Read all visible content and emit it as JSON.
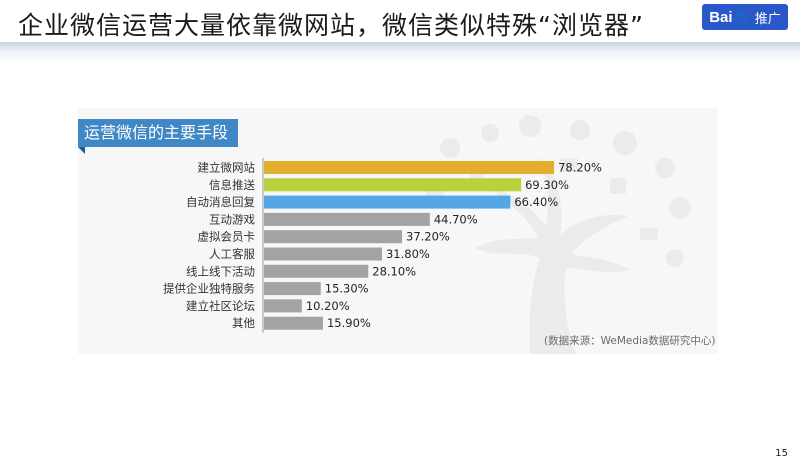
{
  "slide": {
    "title": "企业微信运营大量依靠微网站，微信类似特殊“浏览器”",
    "page_number": "15",
    "logo": {
      "brand": "Bai",
      "glyph": "du",
      "suffix": "推广"
    }
  },
  "panel": {
    "tab_title": "运营微信的主要手段"
  },
  "source": "(数据来源：WeMedia数据研究中心)",
  "colors": {
    "gold": "#e3ae2e",
    "lime": "#b7d23a",
    "blue": "#55a6e6",
    "gray": "#a3a3a3"
  },
  "chart_data": {
    "type": "bar",
    "orientation": "horizontal",
    "title": "运营微信的主要手段",
    "categories": [
      "建立微网站",
      "信息推送",
      "自动消息回复",
      "互动游戏",
      "虚拟会员卡",
      "人工客服",
      "线上线下活动",
      "提供企业独特服务",
      "建立社区论坛",
      "其他"
    ],
    "values": [
      78.2,
      69.3,
      66.4,
      44.7,
      37.2,
      31.8,
      28.1,
      15.3,
      10.2,
      15.9
    ],
    "value_labels": [
      "78.20%",
      "69.30%",
      "66.40%",
      "44.70%",
      "37.20%",
      "31.80%",
      "28.10%",
      "15.30%",
      "10.20%",
      "15.90%"
    ],
    "bar_colors": [
      "#e3ae2e",
      "#b7d23a",
      "#55a6e6",
      "#a3a3a3",
      "#a3a3a3",
      "#a3a3a3",
      "#a3a3a3",
      "#a3a3a3",
      "#a3a3a3",
      "#a3a3a3"
    ],
    "xlim": [
      0,
      100
    ],
    "grid": false,
    "legend": "none"
  }
}
